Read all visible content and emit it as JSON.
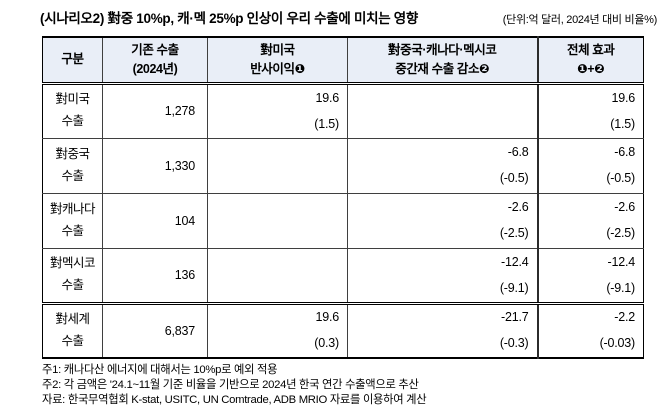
{
  "title": "(시나리오2) 對중 10%p, 캐·멕 25%p 인상이 우리 수출에 미치는 영향",
  "unit_note": "(단위:억 달러, 2024년 대비 비율%)",
  "colors": {
    "header_bg": "#e9eef7",
    "border": "#000000"
  },
  "table": {
    "headers": {
      "category": "구분",
      "base_exports": "기존 수출\n(2024년)",
      "us_gain": "對미국\n반사이익❶",
      "intermediate_loss": "對중국·캐나다·멕시코\n중간재 수출 감소❷",
      "total_effect": "전체 효과\n❶+❷"
    },
    "rows": [
      {
        "label": "對미국\n수출",
        "base": "1,278",
        "us": "19.6",
        "us_pct": "(1.5)",
        "mid": "",
        "mid_pct": "",
        "total": "19.6",
        "total_pct": "(1.5)"
      },
      {
        "label": "對중국\n수출",
        "base": "1,330",
        "us": "",
        "us_pct": "",
        "mid": "-6.8",
        "mid_pct": "(-0.5)",
        "total": "-6.8",
        "total_pct": "(-0.5)"
      },
      {
        "label": "對캐나다\n수출",
        "base": "104",
        "us": "",
        "us_pct": "",
        "mid": "-2.6",
        "mid_pct": "(-2.5)",
        "total": "-2.6",
        "total_pct": "(-2.5)"
      },
      {
        "label": "對멕시코\n수출",
        "base": "136",
        "us": "",
        "us_pct": "",
        "mid": "-12.4",
        "mid_pct": "(-9.1)",
        "total": "-12.4",
        "total_pct": "(-9.1)"
      },
      {
        "label": "對세계\n수출",
        "base": "6,837",
        "us": "19.6",
        "us_pct": "(0.3)",
        "mid": "-21.7",
        "mid_pct": "(-0.3)",
        "total": "-2.2",
        "total_pct": "(-0.03)"
      }
    ]
  },
  "footnotes": [
    "주1: 캐나다산 에너지에 대해서는 10%p로 예외 적용",
    "주2: 각 금액은 '24.1~11월 기준 비율을 기반으로 2024년 한국 연간 수출액으로 추산",
    "자료: 한국무역협회 K-stat, USITC, UN Comtrade, ADB MRIO 자료를 이용하여 계산"
  ]
}
